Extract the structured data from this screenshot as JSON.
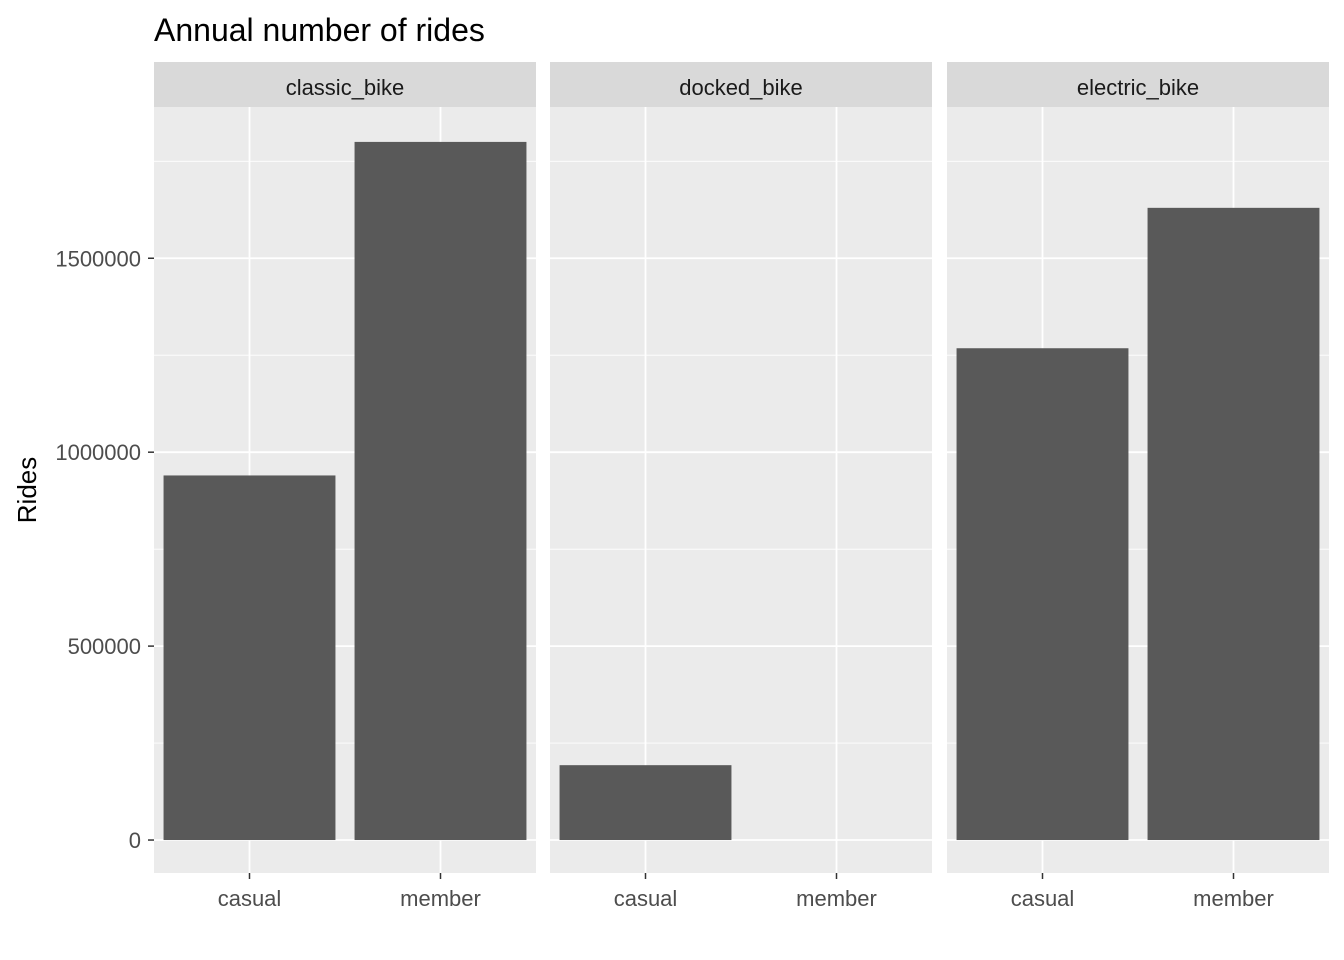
{
  "chart_data": {
    "type": "bar",
    "title": "Annual number of rides",
    "xlabel": "",
    "ylabel": "Rides",
    "ylim": [
      -85000,
      1890000
    ],
    "y_ticks": [
      0,
      500000,
      1000000,
      1500000
    ],
    "y_tick_labels": [
      "0",
      "500000",
      "1000000",
      "1500000"
    ],
    "categories": [
      "casual",
      "member"
    ],
    "facets": [
      {
        "name": "classic_bike",
        "values": [
          940000,
          1800000
        ]
      },
      {
        "name": "docked_bike",
        "values": [
          193000,
          0
        ]
      },
      {
        "name": "electric_bike",
        "values": [
          1268000,
          1630000
        ]
      }
    ],
    "bar_color": "#595959",
    "panel_color": "#ebebeb",
    "strip_color": "#d9d9d9",
    "grid": true,
    "legend": "none"
  }
}
